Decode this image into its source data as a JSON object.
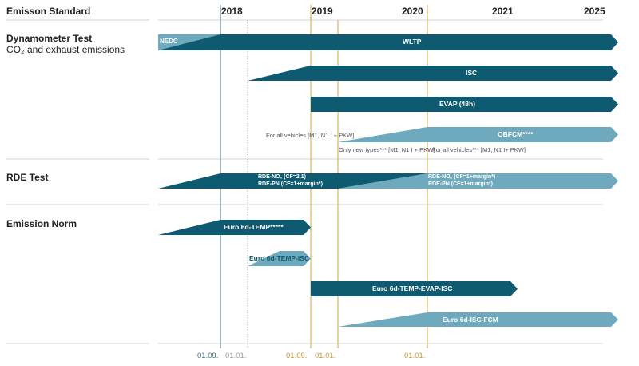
{
  "header": {
    "title": "Emisson Standard",
    "years": [
      "2018",
      "2019",
      "2020",
      "2021",
      "2025"
    ]
  },
  "rows": {
    "dynamometer": {
      "title": "Dynamometer Test",
      "subtitle": "CO₂ and exhaust emissions"
    },
    "rde": {
      "title": "RDE Test"
    },
    "norm": {
      "title": "Emission Norm"
    }
  },
  "bars": {
    "nedc": "NEDC",
    "wltp": "WLTP",
    "isc": "ISC",
    "evap": "EVAP (48h)",
    "obfcm": "OBFCM****",
    "rde1_line1": "RDE-NOₓ (CF=2,1)",
    "rde1_line2": "RDE-PN (CF=1+margin*)",
    "rde2_line1": "RDE-NOₓ (CF=1+margin*)",
    "rde2_line2": "RDE-PN (CF=1+margin*)",
    "euro_temp": "Euro 6d-TEMP*****",
    "euro_temp_isc": "Euro 6d-TEMP-ISC",
    "euro_temp_evap_isc": "Euro 6d-TEMP-EVAP-ISC",
    "euro_isc_fcm": "Euro 6d-ISC-FCM"
  },
  "notes": {
    "all_vehicles_1": "For all vehicles [M1, N1 I + PKW]",
    "only_new": "Only new types*** [M1, N1 I + PKW]",
    "all_vehicles_2": "For all vehicles*** [M1, N1 I+ PKW]"
  },
  "dates": {
    "d1": "01.09.",
    "d2": "01.01.",
    "d3": "01.09.",
    "d4": "01.01.",
    "d5": "01.01."
  },
  "colors": {
    "dark": "#0e5a70",
    "light": "#6fa9be",
    "line_dark": "#3f6f86",
    "line_gold": "#d7a545",
    "grid": "#c8c8c8"
  }
}
